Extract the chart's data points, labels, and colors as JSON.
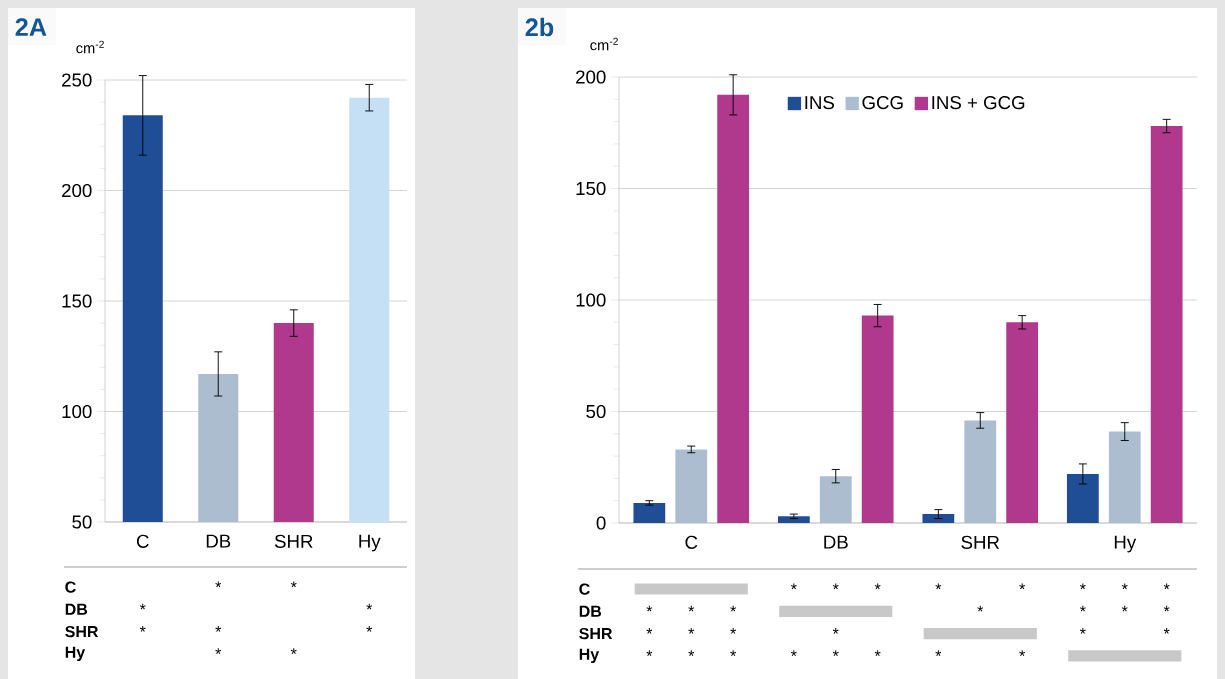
{
  "chart_data": [
    {
      "type": "bar",
      "title": "2A",
      "ylabel": "cm$^{-2}$",
      "categories": [
        "C",
        "DB",
        "SHR",
        "Hy"
      ],
      "values": [
        234,
        117,
        140,
        242
      ],
      "colors": [
        "#1f4e96",
        "#adbdd0",
        "#b0398e",
        "#c5dff4"
      ],
      "errors": [
        18,
        10,
        6,
        6
      ],
      "ylim": [
        50,
        250
      ],
      "yticks": [
        50,
        100,
        150,
        200,
        250
      ],
      "grid": "y"
    },
    {
      "type": "other",
      "categories": [
        null,
        null,
        null,
        null
      ],
      "y_categories": [
        "C",
        "DB",
        "SHR",
        "Hy"
      ],
      "cell_labels": [
        [
          null,
          "*",
          "*",
          null
        ],
        [
          "*",
          null,
          null,
          "*"
        ],
        [
          "*",
          "*",
          null,
          "*"
        ],
        [
          null,
          "*",
          "*",
          null
        ]
      ]
    },
    {
      "type": "bar",
      "title": "2b",
      "ylabel": "cm$^{-2}$",
      "categories": [
        "C",
        "DB",
        "SHR",
        "Hy"
      ],
      "series": [
        {
          "name": "INS",
          "color": "#1f4e96",
          "values": [
            9,
            3,
            4,
            22
          ],
          "errors": [
            1,
            1,
            2,
            4.5
          ]
        },
        {
          "name": "GCG",
          "color": "#adbdd0",
          "values": [
            33,
            21,
            46,
            41
          ],
          "errors": [
            1.5,
            3,
            3.5,
            4
          ]
        },
        {
          "name": "INS + GCG",
          "color": "#b0398e",
          "values": [
            192,
            93,
            90,
            178
          ],
          "errors": [
            9,
            5,
            3,
            3
          ]
        }
      ],
      "ylim": [
        0,
        200
      ],
      "yticks": [
        0,
        50,
        100,
        150,
        200
      ],
      "grid": "y",
      "legend": "top"
    },
    {
      "type": "other",
      "categories": [
        null,
        null,
        null,
        null,
        null,
        null,
        null,
        null,
        null,
        null,
        null,
        null
      ],
      "y_categories": [
        "C",
        "DB",
        "SHR",
        "Hy"
      ],
      "cell_labels": [
        [
          null,
          null,
          null,
          "*",
          "*",
          "*",
          "*",
          null,
          "*",
          "*",
          "*",
          "*"
        ],
        [
          "*",
          "*",
          "*",
          null,
          null,
          null,
          null,
          "*",
          null,
          "*",
          "*",
          "*"
        ],
        [
          "*",
          "*",
          "*",
          null,
          "*",
          null,
          null,
          null,
          null,
          "*",
          null,
          "*"
        ],
        [
          "*",
          "*",
          "*",
          "*",
          "*",
          "*",
          "*",
          null,
          "*",
          null,
          null,
          null
        ]
      ]
    }
  ]
}
